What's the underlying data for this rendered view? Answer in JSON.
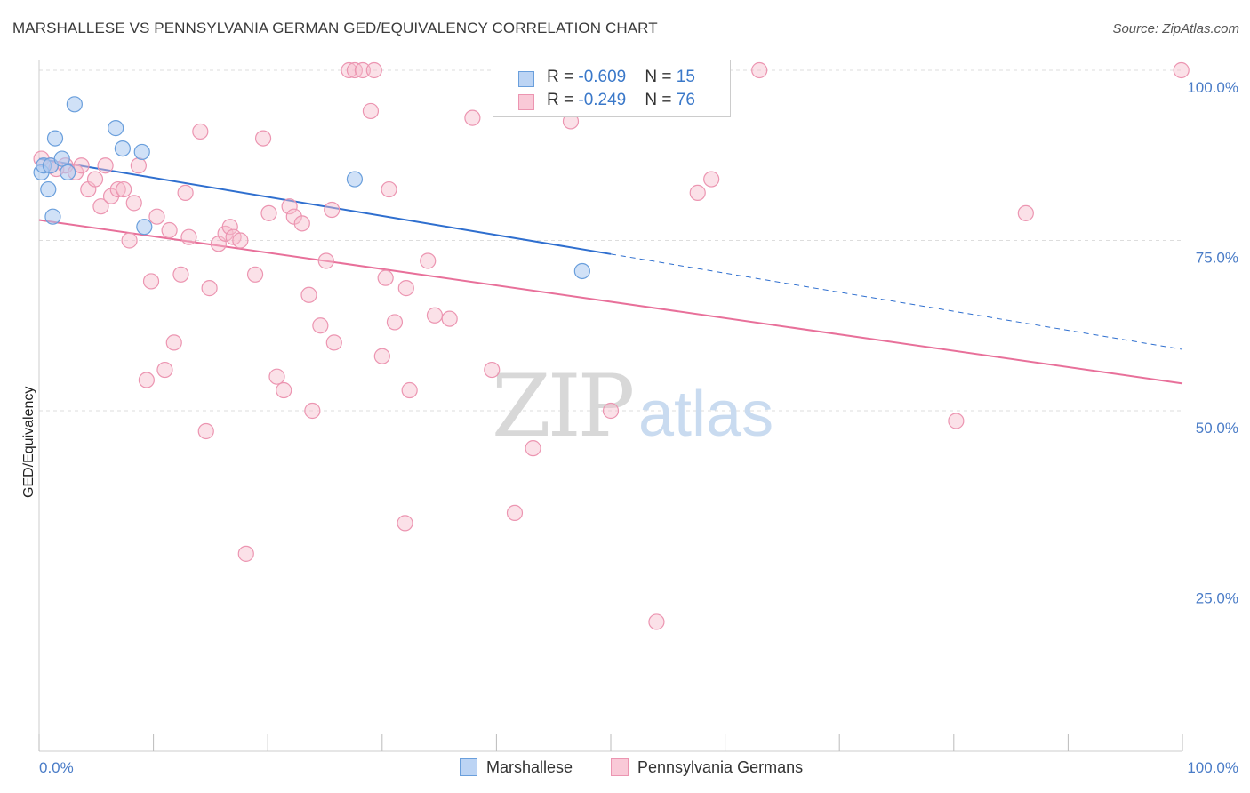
{
  "title": "MARSHALLESE VS PENNSYLVANIA GERMAN GED/EQUIVALENCY CORRELATION CHART",
  "source": "Source: ZipAtlas.com",
  "watermark": {
    "zip": "ZIP",
    "atlas": "atlas"
  },
  "colors": {
    "marshallese_fill": "#a9c8f0",
    "marshallese_stroke": "#6a9fdc",
    "marshallese_line": "#2f6fcf",
    "pa_fill": "#f6bccd",
    "pa_stroke": "#ec95b1",
    "pa_line": "#e8709a",
    "tick_text": "#4a7cc7",
    "grid": "#dddddd"
  },
  "legend": {
    "rows": [
      {
        "r_label": "R = ",
        "r_value": "-0.609",
        "n_label": "N = ",
        "n_value": "15"
      },
      {
        "r_label": "R = ",
        "r_value": "-0.249",
        "n_label": "N = ",
        "n_value": "76"
      }
    ]
  },
  "bottom_legend": {
    "marshallese": "Marshallese",
    "pa": "Pennsylvania Germans"
  },
  "chart_data": {
    "type": "scatter",
    "title": "MARSHALLESE VS PENNSYLVANIA GERMAN GED/EQUIVALENCY CORRELATION CHART",
    "xlabel": "",
    "ylabel": "GED/Equivalency",
    "xlim": [
      0,
      100
    ],
    "ylim": [
      0,
      100
    ],
    "x_tick_labels": [
      "0.0%",
      "100.0%"
    ],
    "y_ticks": [
      25,
      50,
      75,
      100
    ],
    "y_tick_labels": [
      "25.0%",
      "50.0%",
      "75.0%",
      "100.0%"
    ],
    "grid": true,
    "legend_position": "top-center",
    "series": [
      {
        "name": "Marshallese",
        "r": -0.609,
        "n": 15,
        "trend": {
          "x0": 0,
          "y0": 87,
          "x1": 50,
          "y1": 73,
          "dashed_to_x": 100,
          "dashed_to_y": 59
        },
        "points": [
          [
            0.2,
            85
          ],
          [
            0.4,
            86
          ],
          [
            0.8,
            82.5
          ],
          [
            1.0,
            86
          ],
          [
            1.2,
            78.5
          ],
          [
            1.4,
            90
          ],
          [
            2.0,
            87
          ],
          [
            2.5,
            85
          ],
          [
            3.1,
            95
          ],
          [
            6.7,
            91.5
          ],
          [
            7.3,
            88.5
          ],
          [
            9.0,
            88
          ],
          [
            9.2,
            77
          ],
          [
            27.6,
            84
          ],
          [
            47.5,
            70.5
          ]
        ]
      },
      {
        "name": "Pennsylvania Germans",
        "r": -0.249,
        "n": 76,
        "trend": {
          "x0": 0,
          "y0": 78,
          "x1": 100,
          "y1": 54
        },
        "points": [
          [
            0.2,
            87
          ],
          [
            1.0,
            86
          ],
          [
            1.5,
            85.5
          ],
          [
            2.3,
            86
          ],
          [
            3.2,
            85
          ],
          [
            3.7,
            86
          ],
          [
            4.3,
            82.5
          ],
          [
            4.9,
            84
          ],
          [
            5.4,
            80
          ],
          [
            5.8,
            86
          ],
          [
            6.3,
            81.5
          ],
          [
            6.9,
            82.5
          ],
          [
            7.4,
            82.5
          ],
          [
            8.3,
            80.5
          ],
          [
            8.7,
            86
          ],
          [
            7.9,
            75
          ],
          [
            9.4,
            54.5
          ],
          [
            9.8,
            69
          ],
          [
            10.3,
            78.5
          ],
          [
            11.0,
            56
          ],
          [
            11.4,
            76.5
          ],
          [
            11.8,
            60
          ],
          [
            12.4,
            70
          ],
          [
            12.8,
            82
          ],
          [
            13.1,
            75.5
          ],
          [
            14.1,
            91
          ],
          [
            14.6,
            47
          ],
          [
            14.9,
            68
          ],
          [
            15.7,
            74.5
          ],
          [
            16.3,
            76
          ],
          [
            16.7,
            77
          ],
          [
            17.0,
            75.5
          ],
          [
            17.6,
            75
          ],
          [
            18.1,
            29
          ],
          [
            18.9,
            70
          ],
          [
            19.6,
            90
          ],
          [
            20.1,
            79
          ],
          [
            20.8,
            55
          ],
          [
            21.4,
            53
          ],
          [
            21.9,
            80
          ],
          [
            22.3,
            78.5
          ],
          [
            23.0,
            77.5
          ],
          [
            23.6,
            67
          ],
          [
            23.9,
            50
          ],
          [
            24.6,
            62.5
          ],
          [
            25.1,
            72
          ],
          [
            25.8,
            60
          ],
          [
            25.6,
            79.5
          ],
          [
            27.1,
            100
          ],
          [
            27.6,
            100
          ],
          [
            28.3,
            100
          ],
          [
            29.0,
            94
          ],
          [
            29.3,
            100
          ],
          [
            30.0,
            58
          ],
          [
            30.6,
            82.5
          ],
          [
            30.3,
            69.5
          ],
          [
            31.1,
            63
          ],
          [
            32.4,
            53
          ],
          [
            32.1,
            68
          ],
          [
            34.0,
            72
          ],
          [
            34.6,
            64
          ],
          [
            35.9,
            63.5
          ],
          [
            37.9,
            93
          ],
          [
            39.6,
            56
          ],
          [
            41.6,
            35
          ],
          [
            43.2,
            44.5
          ],
          [
            46.5,
            92.5
          ],
          [
            50.0,
            50
          ],
          [
            57.6,
            82
          ],
          [
            58.8,
            84
          ],
          [
            63.0,
            100
          ],
          [
            80.2,
            48.5
          ],
          [
            86.3,
            79
          ],
          [
            99.9,
            100
          ],
          [
            32.0,
            33.5
          ],
          [
            54.0,
            19
          ]
        ]
      }
    ]
  }
}
